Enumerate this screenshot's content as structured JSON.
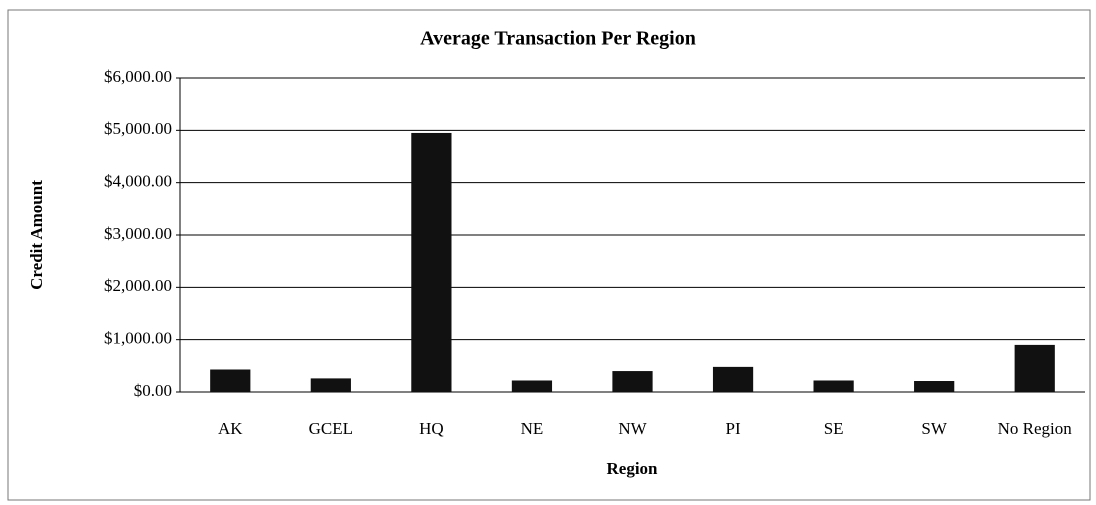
{
  "chart_data": {
    "type": "bar",
    "title": "Average Transaction Per Region",
    "x_label": "Region",
    "y_label": "Credit Amount",
    "categories": [
      "AK",
      "GCEL",
      "HQ",
      "NE",
      "NW",
      "PI",
      "SE",
      "SW",
      "No Region"
    ],
    "values": [
      430,
      260,
      4950,
      220,
      400,
      480,
      220,
      210,
      900
    ],
    "color": "#111111",
    "ylim": [
      0,
      6000
    ],
    "yticks": [
      {
        "value": 0,
        "label": "$0.00"
      },
      {
        "value": 1000,
        "label": "$1,000.00"
      },
      {
        "value": 2000,
        "label": "$2,000.00"
      },
      {
        "value": 3000,
        "label": "$3,000.00"
      },
      {
        "value": 4000,
        "label": "$4,000.00"
      },
      {
        "value": 5000,
        "label": "$5,000.00"
      },
      {
        "value": 6000,
        "label": "$6,000.00"
      }
    ],
    "grid": true
  }
}
